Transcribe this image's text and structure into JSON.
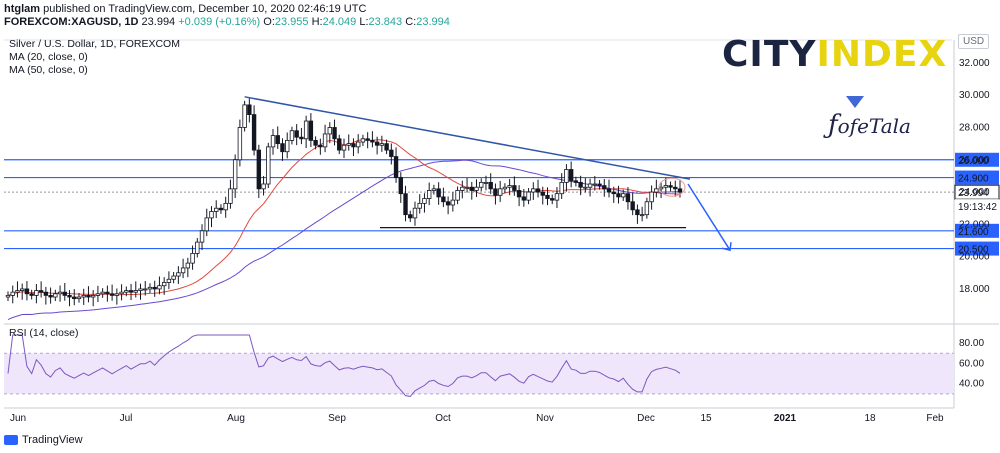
{
  "header": {
    "author": "htglam",
    "published_text": "published on TradingView.com, December 10, 2020 02:46:19 UTC"
  },
  "quote": {
    "symbol": "FOREXCOM:XAGUSD, 1D",
    "last": "23.994",
    "change": "+0.039 (+0.16%)",
    "o_label": "O:",
    "o": "23.955",
    "h_label": "H:",
    "h": "24.049",
    "l_label": "L:",
    "l": "23.843",
    "c_label": "C:",
    "c": "23.994"
  },
  "legend": {
    "title": "Silver / U.S. Dollar, 1D, FOREXCOM",
    "ma20": "MA (20, close, 0)",
    "ma50": "MA (50, close, 0)"
  },
  "rsi_label": "RSI (14, close)",
  "footer": {
    "brand": "TradingView"
  },
  "logos": {
    "cityindex_left": "CITY",
    "cityindex_right": "INDEX",
    "fotala": "ofeTala"
  },
  "currency_badge": "USD",
  "colors": {
    "up": "#ffffff",
    "down": "#131722",
    "ma20": "#e04b3e",
    "ma50": "#6a49cf",
    "levels": "#2962ff",
    "trendline": "#2f56a8",
    "rsi_line": "#7e57c2",
    "rsi_band": "#efe6fb"
  },
  "chart_data": {
    "type": "candlestick",
    "title": "Silver / U.S. Dollar, 1D, FOREXCOM",
    "price_axis": {
      "ticks": [
        "32.000",
        "30.000",
        "28.000",
        "26.000",
        "24.000",
        "22.000",
        "20.000",
        "18.000"
      ],
      "min": 16.2,
      "max": 32.8
    },
    "x_axis_ticks": [
      "Jun",
      "Jul",
      "Aug",
      "Sep",
      "Oct",
      "Nov",
      "Dec",
      "15",
      "2021",
      "18",
      "Feb"
    ],
    "horizontal_levels": [
      {
        "label": "26.000",
        "value": 26.0
      },
      {
        "label": "24.900",
        "value": 24.9
      },
      {
        "label": "21.600",
        "value": 21.6
      },
      {
        "label": "20.500",
        "value": 20.5
      }
    ],
    "price_label": "23.994",
    "countdown": "19:13:42",
    "close_series": [
      17.6,
      17.8,
      17.9,
      18.0,
      17.7,
      17.6,
      17.9,
      17.8,
      17.6,
      17.5,
      17.7,
      17.8,
      17.6,
      17.5,
      17.4,
      17.5,
      17.6,
      17.5,
      17.6,
      17.7,
      17.8,
      17.7,
      17.6,
      17.7,
      17.8,
      17.9,
      17.8,
      17.9,
      18.0,
      18.0,
      18.1,
      18.0,
      18.2,
      18.4,
      18.6,
      18.8,
      19.0,
      19.3,
      19.6,
      20.2,
      20.9,
      21.6,
      22.4,
      22.8,
      23.0,
      22.9,
      23.3,
      24.2,
      26.0,
      28.0,
      29.4,
      28.8,
      26.6,
      24.2,
      24.5,
      26.8,
      27.5,
      27.0,
      26.5,
      27.2,
      27.8,
      27.4,
      27.3,
      28.4,
      27.2,
      26.9,
      26.8,
      27.6,
      28.0,
      27.3,
      26.6,
      26.9,
      27.0,
      26.8,
      27.1,
      27.3,
      27.2,
      27.1,
      26.9,
      27.0,
      26.6,
      26.2,
      24.9,
      23.9,
      22.6,
      22.4,
      23.0,
      23.3,
      23.6,
      24.1,
      24.2,
      23.7,
      23.4,
      23.2,
      23.5,
      24.1,
      24.3,
      24.3,
      24.1,
      24.3,
      24.6,
      24.6,
      24.2,
      23.8,
      24.2,
      24.3,
      24.4,
      24.1,
      23.7,
      23.5,
      24.0,
      24.2,
      24.0,
      23.8,
      23.6,
      23.5,
      23.9,
      24.6,
      25.4,
      24.7,
      24.6,
      24.3,
      24.3,
      24.5,
      24.5,
      24.4,
      24.2,
      24.0,
      23.9,
      23.7,
      23.9,
      23.4,
      22.9,
      22.6,
      22.6,
      23.4,
      24.0,
      24.2,
      24.3,
      24.4,
      24.3,
      24.2,
      23.994
    ],
    "rsi": {
      "levels": [
        "80.00",
        "60.00",
        "40.00"
      ],
      "band": [
        30,
        70
      ]
    },
    "projection_arrow": {
      "from_date": "Dec 9",
      "to_date": "Dec 18",
      "target": 20.5
    }
  }
}
